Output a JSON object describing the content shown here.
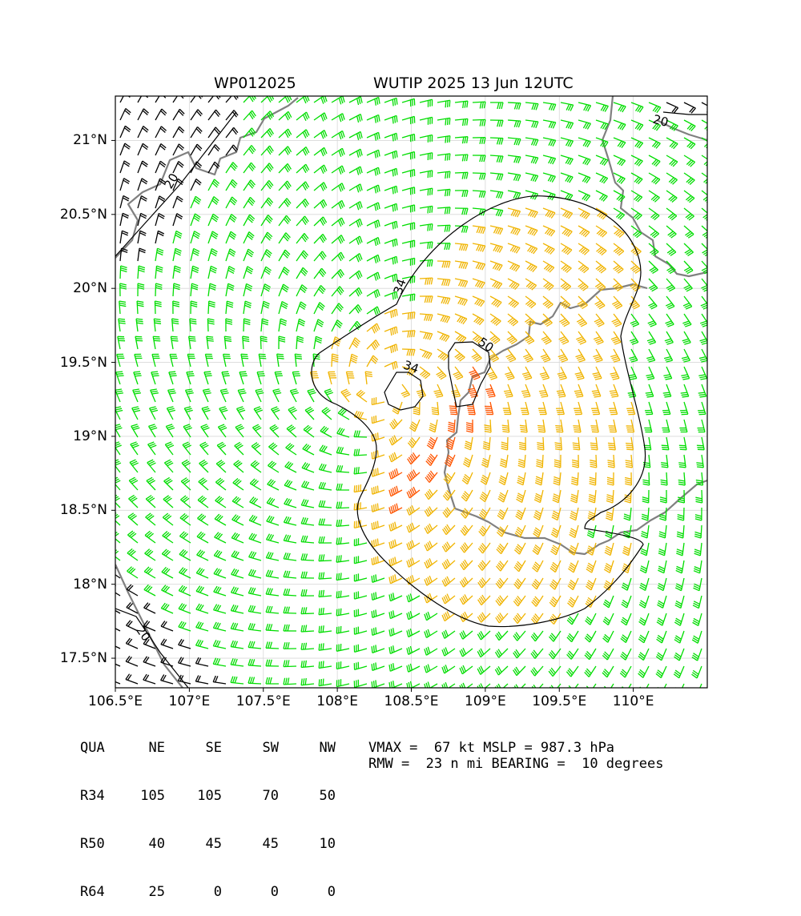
{
  "titles": {
    "storm_id": "WP012025",
    "storm_time": "WUTIP 2025 13 Jun 12UTC"
  },
  "axes": {
    "lat_ticks": [
      "21°N",
      "20.5°N",
      "20°N",
      "19.5°N",
      "19°N",
      "18.5°N",
      "18°N",
      "17.5°N"
    ],
    "lon_ticks": [
      "106.5°E",
      "107°E",
      "107.5°E",
      "108°E",
      "108.5°E",
      "109°E",
      "109.5°E",
      "110°E"
    ],
    "lat_range": [
      17.3,
      21.3
    ],
    "lon_range": [
      106.5,
      110.5
    ],
    "grid": true
  },
  "storm": {
    "center": {
      "lon": 108.33,
      "lat": 19.32
    },
    "rmw_nmi": 23,
    "bearing_deg": 10
  },
  "contours": [
    {
      "label": "34",
      "level": 34
    },
    {
      "label": "34",
      "level": 34
    },
    {
      "label": "50",
      "level": 50
    },
    {
      "label": "20",
      "level": 20
    },
    {
      "label": "20",
      "level": 20
    },
    {
      "label": "20",
      "level": 20
    }
  ],
  "barb_colors": {
    "calm_lt20": "#000000",
    "gale": "#00dd00",
    "storm": "#f0b400",
    "hurricane": "#ff5500"
  },
  "coast_color": "#808080",
  "wind_radii": {
    "header": [
      "QUA",
      "NE",
      "SE",
      "SW",
      "NW"
    ],
    "rows": [
      {
        "name": "R34",
        "values": [
          "105",
          "105",
          "70",
          "50"
        ]
      },
      {
        "name": "R50",
        "values": [
          "40",
          "45",
          "45",
          "10"
        ]
      },
      {
        "name": "R64",
        "values": [
          "25",
          "0",
          "0",
          "0"
        ]
      }
    ]
  },
  "stats": {
    "vmax_line": "VMAX =  67 kt MSLP = 987.3 hPa",
    "rmw_line": "RMW =  23 n mi BEARING =  10 degrees"
  }
}
